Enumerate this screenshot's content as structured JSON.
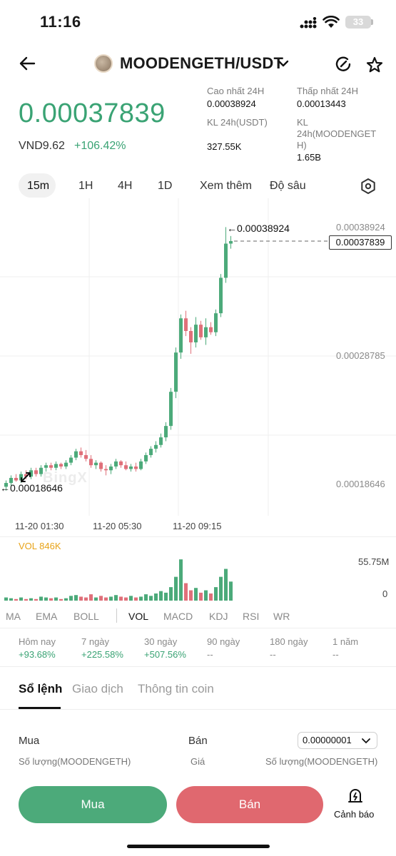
{
  "status_bar": {
    "time": "11:16",
    "battery": "33"
  },
  "header": {
    "pair": "MOODENGETH/USDT"
  },
  "price": {
    "last": "0.00037839",
    "vnd": "VND9.62",
    "change": "+106.42%"
  },
  "stats": {
    "high_label": "Cao nhất 24H",
    "high_value": "0.00038924",
    "low_label": "Thấp nhất 24H",
    "low_value": "0.00013443",
    "vol_usdt_label": "KL 24h(USDT)",
    "vol_usdt_value": "327.55K",
    "vol_coin_label_1": "KL",
    "vol_coin_label_2": "24h(MOODENGET",
    "vol_coin_label_3": "H)",
    "vol_coin_value": "1.65B"
  },
  "timeframes": {
    "m15": "15m",
    "h1": "1H",
    "h4": "4H",
    "d1": "1D",
    "more": "Xem thêm",
    "depth": "Độ sâu"
  },
  "chart": {
    "price_labels": {
      "top": "0.00038924",
      "mid": "0.00028785",
      "bottom": "0.00018646"
    },
    "current_price_box": "0.00037839",
    "high_marker": "0.00038924",
    "low_marker": "0.00018646",
    "watermark": "BingX",
    "x_ticks": [
      "11-20 01:30",
      "11-20 05:30",
      "11-20 09:15"
    ],
    "vol_label": "VOL 846K",
    "vol_axis": {
      "top": "55.75M",
      "bottom": "0"
    },
    "colors": {
      "up": "#4caa7a",
      "down": "#e0707a"
    }
  },
  "chart_data": {
    "type": "candlestick",
    "title": "MOODENGETH/USDT 15m",
    "xlabel": "",
    "ylabel": "",
    "x_ticks": [
      "11-20 01:30",
      "11-20 05:30",
      "11-20 09:15"
    ],
    "ylim": [
      0.00016,
      0.0004
    ],
    "candles": [
      {
        "o": 0.000184,
        "h": 0.000189,
        "l": 0.000181,
        "c": 0.000187
      },
      {
        "o": 0.000187,
        "h": 0.000193,
        "l": 0.000185,
        "c": 0.000191
      },
      {
        "o": 0.000191,
        "h": 0.000194,
        "l": 0.000188,
        "c": 0.000189
      },
      {
        "o": 0.000189,
        "h": 0.000196,
        "l": 0.000187,
        "c": 0.000194
      },
      {
        "o": 0.000194,
        "h": 0.000197,
        "l": 0.00019,
        "c": 0.000192
      },
      {
        "o": 0.000192,
        "h": 0.000199,
        "l": 0.00019,
        "c": 0.000197
      },
      {
        "o": 0.000197,
        "h": 0.000199,
        "l": 0.000192,
        "c": 0.000194
      },
      {
        "o": 0.000194,
        "h": 0.000201,
        "l": 0.000192,
        "c": 0.000199
      },
      {
        "o": 0.000199,
        "h": 0.000203,
        "l": 0.000196,
        "c": 0.000201
      },
      {
        "o": 0.000201,
        "h": 0.000203,
        "l": 0.000197,
        "c": 0.000199
      },
      {
        "o": 0.000199,
        "h": 0.000204,
        "l": 0.000197,
        "c": 0.000202
      },
      {
        "o": 0.000202,
        "h": 0.000203,
        "l": 0.000198,
        "c": 0.0002
      },
      {
        "o": 0.0002,
        "h": 0.000205,
        "l": 0.000198,
        "c": 0.000203
      },
      {
        "o": 0.000203,
        "h": 0.000209,
        "l": 0.000201,
        "c": 0.000207
      },
      {
        "o": 0.000207,
        "h": 0.000214,
        "l": 0.000205,
        "c": 0.000212
      },
      {
        "o": 0.000212,
        "h": 0.000215,
        "l": 0.000207,
        "c": 0.000209
      },
      {
        "o": 0.000209,
        "h": 0.000213,
        "l": 0.000204,
        "c": 0.000206
      },
      {
        "o": 0.000206,
        "h": 0.000209,
        "l": 0.000199,
        "c": 0.000201
      },
      {
        "o": 0.000201,
        "h": 0.000205,
        "l": 0.000198,
        "c": 0.000203
      },
      {
        "o": 0.000203,
        "h": 0.000204,
        "l": 0.000196,
        "c": 0.000198
      },
      {
        "o": 0.000198,
        "h": 0.000201,
        "l": 0.000193,
        "c": 0.000197
      },
      {
        "o": 0.000197,
        "h": 0.000202,
        "l": 0.000194,
        "c": 0.0002
      },
      {
        "o": 0.0002,
        "h": 0.000206,
        "l": 0.000198,
        "c": 0.000204
      },
      {
        "o": 0.000204,
        "h": 0.000205,
        "l": 0.000199,
        "c": 0.000201
      },
      {
        "o": 0.000201,
        "h": 0.000204,
        "l": 0.000197,
        "c": 0.000198
      },
      {
        "o": 0.000198,
        "h": 0.000202,
        "l": 0.000196,
        "c": 0.0002
      },
      {
        "o": 0.0002,
        "h": 0.000203,
        "l": 0.000196,
        "c": 0.000198
      },
      {
        "o": 0.000198,
        "h": 0.000206,
        "l": 0.000197,
        "c": 0.000204
      },
      {
        "o": 0.000204,
        "h": 0.000211,
        "l": 0.000202,
        "c": 0.000209
      },
      {
        "o": 0.000209,
        "h": 0.000216,
        "l": 0.000207,
        "c": 0.000214
      },
      {
        "o": 0.000214,
        "h": 0.00022,
        "l": 0.000211,
        "c": 0.000217
      },
      {
        "o": 0.000217,
        "h": 0.000226,
        "l": 0.000215,
        "c": 0.000223
      },
      {
        "o": 0.000223,
        "h": 0.000235,
        "l": 0.00022,
        "c": 0.000232
      },
      {
        "o": 0.000232,
        "h": 0.000262,
        "l": 0.000229,
        "c": 0.000259
      },
      {
        "o": 0.000259,
        "h": 0.000294,
        "l": 0.000254,
        "c": 0.00029
      },
      {
        "o": 0.00029,
        "h": 0.00032,
        "l": 0.000285,
        "c": 0.000317
      },
      {
        "o": 0.000317,
        "h": 0.000323,
        "l": 0.000303,
        "c": 0.000307
      },
      {
        "o": 0.000307,
        "h": 0.00031,
        "l": 0.000289,
        "c": 0.000298
      },
      {
        "o": 0.000298,
        "h": 0.000318,
        "l": 0.000294,
        "c": 0.000312
      },
      {
        "o": 0.000312,
        "h": 0.000315,
        "l": 0.0003,
        "c": 0.000302
      },
      {
        "o": 0.000302,
        "h": 0.000317,
        "l": 0.000296,
        "c": 0.00031
      },
      {
        "o": 0.00031,
        "h": 0.000314,
        "l": 0.000304,
        "c": 0.000306
      },
      {
        "o": 0.000306,
        "h": 0.000324,
        "l": 0.000303,
        "c": 0.000321
      },
      {
        "o": 0.000321,
        "h": 0.000352,
        "l": 0.000318,
        "c": 0.000349
      },
      {
        "o": 0.000349,
        "h": 0.000389,
        "l": 0.000345,
        "c": 0.000376
      },
      {
        "o": 0.000376,
        "h": 0.000382,
        "l": 0.000372,
        "c": 0.000378
      }
    ],
    "volume": [
      4,
      3,
      2,
      4,
      2,
      3,
      2,
      5,
      4,
      3,
      4,
      2,
      3,
      6,
      7,
      5,
      4,
      8,
      4,
      6,
      4,
      5,
      7,
      5,
      4,
      6,
      4,
      5,
      8,
      6,
      9,
      12,
      10,
      17,
      30,
      52,
      22,
      13,
      16,
      10,
      13,
      9,
      17,
      30,
      40,
      24
    ],
    "volume_ylim": [
      0,
      55.75
    ]
  },
  "indicators": {
    "ma": "MA",
    "ema": "EMA",
    "boll": "BOLL",
    "vol": "VOL",
    "macd": "MACD",
    "kdj": "KDJ",
    "rsi": "RSI",
    "wr": "WR"
  },
  "performance": [
    {
      "label": "Hôm nay",
      "value": "+93.68%"
    },
    {
      "label": "7 ngày",
      "value": "+225.58%"
    },
    {
      "label": "30 ngày",
      "value": "+507.56%"
    },
    {
      "label": "90 ngày",
      "value": "--"
    },
    {
      "label": "180 ngày",
      "value": "--"
    },
    {
      "label": "1 năm",
      "value": "--"
    }
  ],
  "bottom_tabs": {
    "orderbook": "Sổ lệnh",
    "trades": "Giao dịch",
    "coin_info": "Thông tin coin"
  },
  "orderbook": {
    "buy": "Mua",
    "sell": "Bán",
    "tick": "0.00000001",
    "qty_left": "Số lượng(MOODENGETH)",
    "price": "Giá",
    "qty_right": "Số lượng(MOODENGETH)"
  },
  "actions": {
    "buy": "Mua",
    "sell": "Bán",
    "alert": "Cảnh báo"
  }
}
